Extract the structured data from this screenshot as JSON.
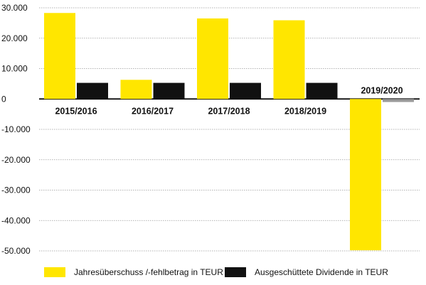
{
  "chart_data": {
    "type": "bar",
    "categories": [
      "2015/2016",
      "2016/2017",
      "2017/2018",
      "2018/2019",
      "2019/2020"
    ],
    "series": [
      {
        "name": "Jahresüberschuss /-fehlbetrag in TEUR",
        "color": "#FFE600",
        "values": [
          28300,
          6300,
          26500,
          25900,
          -49800
        ]
      },
      {
        "name": "Ausgeschüttete Dividende in TEUR",
        "color": "#111111",
        "values": [
          5300,
          5300,
          5300,
          5300,
          -1000
        ]
      }
    ],
    "last_dividend_color": "#9A9A9A",
    "y_ticks": [
      {
        "value": 30000,
        "label": "30.000"
      },
      {
        "value": 20000,
        "label": "20.000"
      },
      {
        "value": 10000,
        "label": "10.000"
      },
      {
        "value": 0,
        "label": "0"
      },
      {
        "value": -10000,
        "label": "-10.000"
      },
      {
        "value": -20000,
        "label": "-20.000"
      },
      {
        "value": -30000,
        "label": "-30.000"
      },
      {
        "value": -40000,
        "label": "-40.000"
      },
      {
        "value": -50000,
        "label": "-50.000"
      }
    ],
    "ylim": [
      -50000,
      30000
    ],
    "grid": true,
    "legend_position": "bottom",
    "title": "",
    "xlabel": "",
    "ylabel": ""
  }
}
